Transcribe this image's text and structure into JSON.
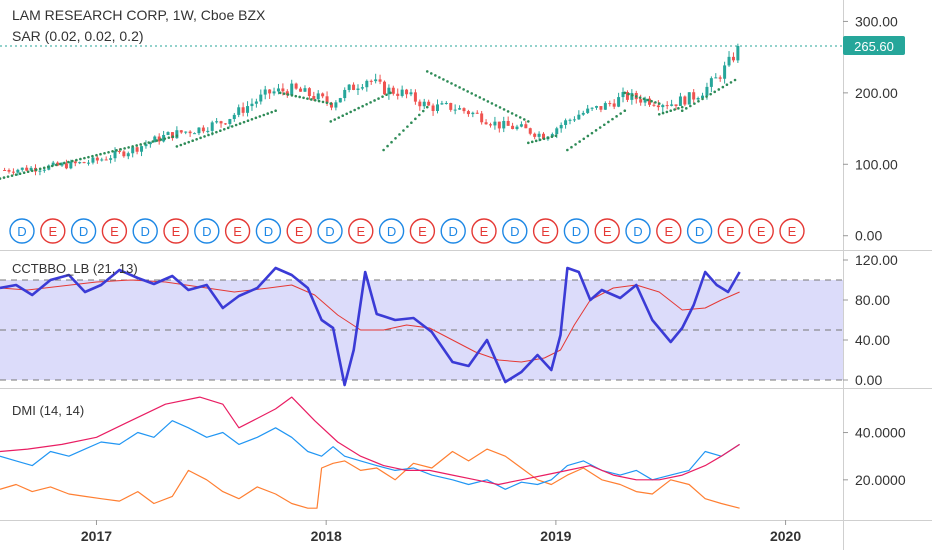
{
  "header": {
    "title": "LAM RESEARCH CORP, 1W, Cboe BZX",
    "sar_label": "SAR (0.02, 0.02, 0.2)",
    "cctbbo_label": "CCTBBO_LB (21, 13)",
    "dmi_label": "DMI (14, 14)"
  },
  "colors": {
    "up": "#26a69a",
    "down": "#ef5350",
    "sar": "#2e8b57",
    "cct_line": "#3b3bd6",
    "cct_signal": "#e53935",
    "cct_band": "#dcdcfa",
    "dmi_plus": "#2196f3",
    "dmi_minus": "#ff7f32",
    "adx": "#e91e63",
    "axis_text": "#333333",
    "last_price_bg": "#26a69a"
  },
  "chart_data": [
    {
      "type": "candlestick",
      "name": "price",
      "title": "LAM RESEARCH CORP, 1W, Cboe BZX",
      "ylim": [
        -20,
        330
      ],
      "y_ticks": [
        "300.00",
        "200.00",
        "100.00",
        "0.00"
      ],
      "y_tick_values": [
        300,
        200,
        100,
        0
      ],
      "last_price": 265.6,
      "last_price_label": "265.60",
      "x_ticks": [
        "2017",
        "2018",
        "2019",
        "2020"
      ],
      "x_tick_dates": [
        2017.0,
        2018.0,
        2019.0,
        2020.0
      ],
      "xlim": [
        2016.58,
        2020.25
      ],
      "keypoints": [
        [
          2016.6,
          92
        ],
        [
          2016.75,
          95
        ],
        [
          2016.9,
          100
        ],
        [
          2017.0,
          105
        ],
        [
          2017.15,
          120
        ],
        [
          2017.3,
          140
        ],
        [
          2017.45,
          150
        ],
        [
          2017.55,
          160
        ],
        [
          2017.65,
          180
        ],
        [
          2017.75,
          200
        ],
        [
          2017.85,
          205
        ],
        [
          2017.95,
          195
        ],
        [
          2018.02,
          185
        ],
        [
          2018.1,
          205
        ],
        [
          2018.18,
          220
        ],
        [
          2018.25,
          205
        ],
        [
          2018.33,
          200
        ],
        [
          2018.45,
          180
        ],
        [
          2018.55,
          180
        ],
        [
          2018.65,
          170
        ],
        [
          2018.75,
          155
        ],
        [
          2018.85,
          150
        ],
        [
          2018.95,
          140
        ],
        [
          2019.02,
          155
        ],
        [
          2019.1,
          170
        ],
        [
          2019.2,
          180
        ],
        [
          2019.3,
          195
        ],
        [
          2019.4,
          190
        ],
        [
          2019.5,
          185
        ],
        [
          2019.6,
          195
        ],
        [
          2019.65,
          205
        ],
        [
          2019.7,
          220
        ],
        [
          2019.75,
          240
        ],
        [
          2019.78,
          255
        ],
        [
          2019.8,
          265.6
        ]
      ],
      "sar_segments": [
        {
          "from": [
            2016.58,
            80
          ],
          "to": [
            2017.35,
            140
          ]
        },
        {
          "from": [
            2017.35,
            125
          ],
          "to": [
            2017.78,
            175
          ]
        },
        {
          "from": [
            2017.8,
            200
          ],
          "to": [
            2018.02,
            185
          ]
        },
        {
          "from": [
            2018.02,
            160
          ],
          "to": [
            2018.28,
            200
          ]
        },
        {
          "from": [
            2018.25,
            120
          ],
          "to": [
            2018.44,
            180
          ]
        },
        {
          "from": [
            2018.44,
            230
          ],
          "to": [
            2018.88,
            160
          ]
        },
        {
          "from": [
            2018.88,
            130
          ],
          "to": [
            2019.0,
            140
          ]
        },
        {
          "from": [
            2019.05,
            120
          ],
          "to": [
            2019.3,
            175
          ]
        },
        {
          "from": [
            2019.3,
            200
          ],
          "to": [
            2019.45,
            185
          ]
        },
        {
          "from": [
            2019.45,
            170
          ],
          "to": [
            2019.55,
            180
          ]
        },
        {
          "from": [
            2019.55,
            175
          ],
          "to": [
            2019.78,
            218
          ]
        }
      ],
      "events": [
        "D",
        "E",
        "D",
        "E",
        "D",
        "E",
        "D",
        "E",
        "D",
        "E",
        "D",
        "E",
        "D",
        "E",
        "D",
        "E",
        "D",
        "E",
        "D",
        "E",
        "D",
        "E",
        "D",
        "E",
        "E",
        "E"
      ]
    },
    {
      "type": "line",
      "name": "CCTBBO_LB (21, 13)",
      "ylim": [
        -8,
        128
      ],
      "y_ticks": [
        "120.00",
        "80.00",
        "40.00",
        "0.00"
      ],
      "y_tick_values": [
        120,
        80,
        40,
        0
      ],
      "levels": [
        100,
        50,
        0
      ],
      "series": [
        {
          "role": "oscillator",
          "x": [
            2016.58,
            2016.65,
            2016.72,
            2016.8,
            2016.88,
            2016.95,
            2017.02,
            2017.1,
            2017.18,
            2017.25,
            2017.33,
            2017.4,
            2017.48,
            2017.55,
            2017.62,
            2017.7,
            2017.78,
            2017.85,
            2017.92,
            2017.98,
            2018.03,
            2018.08,
            2018.12,
            2018.17,
            2018.22,
            2018.3,
            2018.38,
            2018.46,
            2018.55,
            2018.62,
            2018.7,
            2018.78,
            2018.85,
            2018.92,
            2018.98,
            2019.02,
            2019.05,
            2019.1,
            2019.15,
            2019.2,
            2019.28,
            2019.35,
            2019.42,
            2019.5,
            2019.55,
            2019.6,
            2019.65,
            2019.7,
            2019.75,
            2019.8
          ],
          "values": [
            92,
            95,
            85,
            100,
            105,
            88,
            95,
            110,
            102,
            96,
            104,
            90,
            95,
            72,
            84,
            92,
            112,
            105,
            92,
            60,
            52,
            -5,
            30,
            108,
            66,
            60,
            62,
            48,
            18,
            14,
            40,
            -2,
            8,
            25,
            10,
            45,
            112,
            108,
            80,
            90,
            82,
            95,
            60,
            38,
            52,
            75,
            108,
            95,
            88,
            108
          ]
        },
        {
          "role": "signal",
          "x": [
            2016.58,
            2016.7,
            2016.85,
            2017.0,
            2017.15,
            2017.3,
            2017.45,
            2017.6,
            2017.75,
            2017.85,
            2017.95,
            2018.05,
            2018.15,
            2018.25,
            2018.35,
            2018.45,
            2018.55,
            2018.65,
            2018.75,
            2018.85,
            2018.95,
            2019.02,
            2019.08,
            2019.15,
            2019.25,
            2019.35,
            2019.45,
            2019.55,
            2019.65,
            2019.72,
            2019.8
          ],
          "values": [
            92,
            90,
            94,
            98,
            100,
            98,
            93,
            88,
            92,
            95,
            85,
            65,
            50,
            50,
            55,
            52,
            40,
            28,
            20,
            18,
            22,
            30,
            55,
            80,
            92,
            95,
            88,
            70,
            72,
            80,
            88
          ]
        }
      ]
    },
    {
      "type": "line",
      "name": "DMI (14, 14)",
      "ylim": [
        3,
        58
      ],
      "y_ticks": [
        "40.0000",
        "20.0000"
      ],
      "y_tick_values": [
        40,
        20
      ],
      "series": [
        {
          "role": "plus_di",
          "x": [
            2016.58,
            2016.65,
            2016.72,
            2016.8,
            2016.88,
            2016.95,
            2017.02,
            2017.1,
            2017.18,
            2017.25,
            2017.33,
            2017.4,
            2017.48,
            2017.55,
            2017.62,
            2017.7,
            2017.78,
            2017.85,
            2017.92,
            2017.98,
            2018.03,
            2018.08,
            2018.15,
            2018.22,
            2018.3,
            2018.38,
            2018.46,
            2018.55,
            2018.62,
            2018.7,
            2018.78,
            2018.85,
            2018.92,
            2018.98,
            2019.05,
            2019.12,
            2019.2,
            2019.28,
            2019.35,
            2019.42,
            2019.5,
            2019.58,
            2019.65,
            2019.72,
            2019.8
          ],
          "values": [
            30,
            28,
            26,
            32,
            30,
            33,
            36,
            35,
            40,
            38,
            45,
            42,
            38,
            40,
            35,
            38,
            42,
            38,
            32,
            30,
            34,
            30,
            28,
            26,
            24,
            25,
            22,
            20,
            18,
            20,
            16,
            19,
            18,
            20,
            26,
            28,
            24,
            22,
            24,
            20,
            22,
            24,
            32,
            30,
            35
          ]
        },
        {
          "role": "minus_di",
          "x": [
            2016.58,
            2016.65,
            2016.72,
            2016.8,
            2016.88,
            2016.95,
            2017.02,
            2017.1,
            2017.18,
            2017.25,
            2017.33,
            2017.4,
            2017.48,
            2017.55,
            2017.62,
            2017.7,
            2017.78,
            2017.85,
            2017.92,
            2017.96,
            2017.98,
            2018.03,
            2018.08,
            2018.15,
            2018.22,
            2018.3,
            2018.38,
            2018.46,
            2018.55,
            2018.62,
            2018.7,
            2018.78,
            2018.85,
            2018.92,
            2018.98,
            2019.05,
            2019.12,
            2019.2,
            2019.28,
            2019.35,
            2019.42,
            2019.5,
            2019.58,
            2019.65,
            2019.72,
            2019.8
          ],
          "values": [
            16,
            18,
            15,
            17,
            14,
            13,
            12,
            11,
            15,
            10,
            13,
            24,
            20,
            15,
            12,
            17,
            14,
            10,
            8,
            8,
            25,
            27,
            28,
            24,
            25,
            20,
            27,
            25,
            32,
            28,
            33,
            30,
            25,
            20,
            18,
            22,
            25,
            20,
            18,
            15,
            14,
            20,
            18,
            12,
            10,
            8
          ]
        },
        {
          "role": "adx",
          "x": [
            2016.58,
            2016.7,
            2016.85,
            2017.0,
            2017.15,
            2017.3,
            2017.45,
            2017.55,
            2017.62,
            2017.7,
            2017.78,
            2017.85,
            2017.95,
            2018.05,
            2018.15,
            2018.25,
            2018.35,
            2018.45,
            2018.55,
            2018.65,
            2018.75,
            2018.85,
            2018.95,
            2019.05,
            2019.15,
            2019.25,
            2019.35,
            2019.45,
            2019.55,
            2019.65,
            2019.72,
            2019.8
          ],
          "values": [
            32,
            33,
            35,
            38,
            45,
            52,
            55,
            52,
            42,
            46,
            50,
            55,
            45,
            36,
            30,
            26,
            24,
            24,
            22,
            20,
            18,
            20,
            22,
            24,
            26,
            22,
            20,
            20,
            22,
            26,
            30,
            35
          ]
        }
      ]
    }
  ]
}
